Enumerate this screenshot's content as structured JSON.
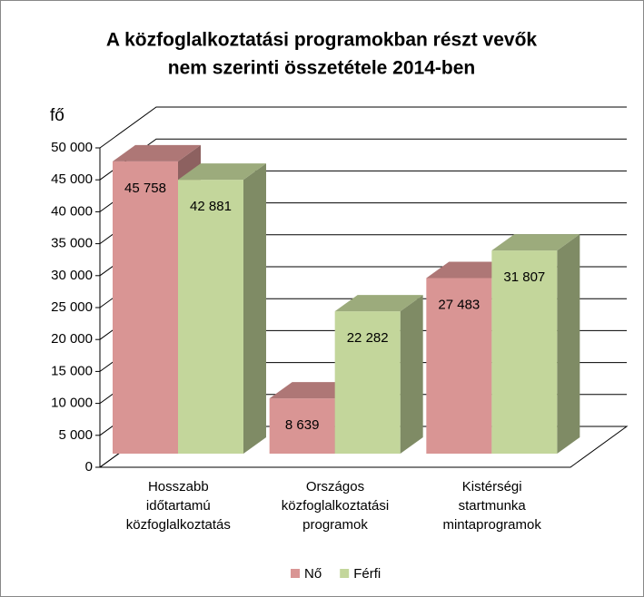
{
  "chart_data": {
    "type": "bar3d",
    "title": [
      "A közfoglalkoztatási programokban részt vevők",
      "nem szerinti összetétele 2014-ben"
    ],
    "y_label": "fő",
    "categories": [
      [
        "Hosszabb",
        "időtartamú",
        "közfoglalkoztatás"
      ],
      [
        "Országos",
        "közfoglalkoztatási",
        "programok"
      ],
      [
        "Kistérségi",
        "startmunka",
        "mintaprogramok"
      ]
    ],
    "series": [
      {
        "name": "Nő",
        "color": "#d99594",
        "values": [
          45758,
          8639,
          27483
        ],
        "value_labels": [
          "45 758",
          "8 639",
          "27 483"
        ]
      },
      {
        "name": "Férfi",
        "color": "#c3d69b",
        "values": [
          42881,
          22282,
          31807
        ],
        "value_labels": [
          "42 881",
          "22 282",
          "31 807"
        ]
      }
    ],
    "ylim": [
      0,
      50000
    ],
    "yticks": [
      0,
      {
        "value": 5000,
        "label": "5 000"
      },
      {
        "value": 10000,
        "label": "10 000"
      },
      {
        "value": 15000,
        "label": "15 000"
      },
      {
        "value": 20000,
        "label": "20 000"
      },
      {
        "value": 25000,
        "label": "25 000"
      },
      {
        "value": 30000,
        "label": "30 000"
      },
      {
        "value": 35000,
        "label": "35 000"
      },
      {
        "value": 40000,
        "label": "40 000"
      },
      {
        "value": 45000,
        "label": "45 000"
      },
      {
        "value": 50000,
        "label": "50 000"
      }
    ],
    "grid": true,
    "legend": "bottom"
  }
}
